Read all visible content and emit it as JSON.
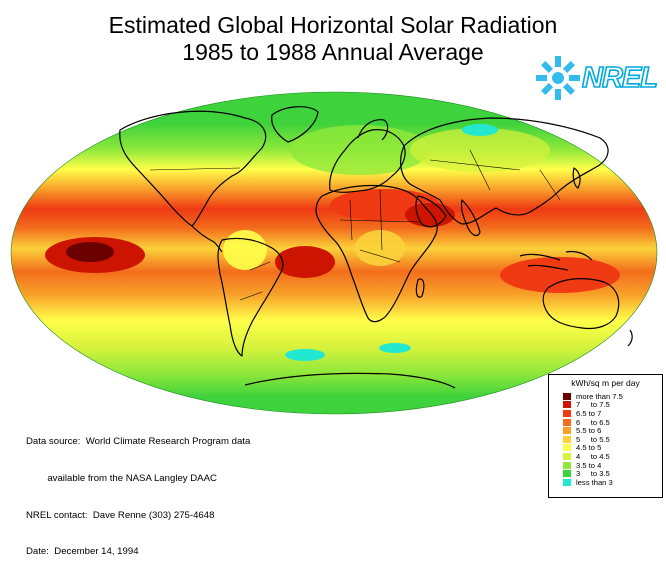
{
  "title_line1": "Estimated Global Horizontal Solar Radiation",
  "title_line2": "1985 to 1988 Annual Average",
  "logo_text": "NREL",
  "source_lines": [
    "Data source:  World Climate Research Program data",
    "        available from the NASA Langley DAAC",
    "NREL contact:  Dave Renne (303) 275-4648",
    "Date:  December 14, 1994"
  ],
  "legend": {
    "title": "kWh/sq m per day",
    "items": [
      {
        "label": "more than 7.5",
        "color": "#6b0000"
      },
      {
        "label": "7     to 7.5",
        "color": "#cc1400"
      },
      {
        "label": "6.5 to 7",
        "color": "#ef3a14"
      },
      {
        "label": "6     to 6.5",
        "color": "#f36e1c"
      },
      {
        "label": "5.5 to 6",
        "color": "#f8a12a"
      },
      {
        "label": "5     to 5.5",
        "color": "#fbd23a"
      },
      {
        "label": "4.5 to 5",
        "color": "#ffff4a"
      },
      {
        "label": "4     to 4.5",
        "color": "#d6f23c"
      },
      {
        "label": "3.5 to 4",
        "color": "#8ee83a"
      },
      {
        "label": "3     to 3.5",
        "color": "#3ed23c"
      },
      {
        "label": "less than 3",
        "color": "#22e8d0"
      }
    ]
  }
}
